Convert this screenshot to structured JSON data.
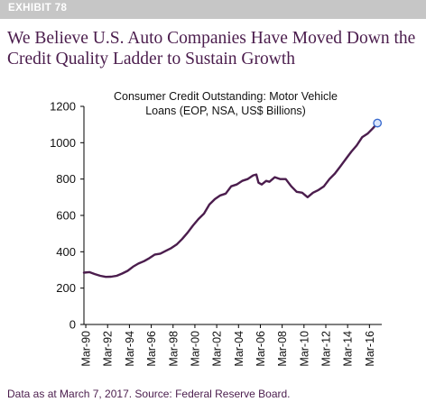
{
  "header": {
    "exhibit": "EXHIBIT 78",
    "title_line1": "We Believe U.S. Auto Companies Have Moved Down the",
    "title_line2": "Credit Quality Ladder to Sustain Growth"
  },
  "footnote": "Data as at March 7, 2017. Source: Federal Reserve Board.",
  "colors": {
    "headline": "#4b1d4d",
    "line": "#4b1d4d",
    "marker": "#3b6ccf",
    "exhibit_bar": "#c6c6c6"
  },
  "chart_data": {
    "type": "line",
    "title_line1": "Consumer Credit Outstanding: Motor Vehicle",
    "title_line2": "Loans (EOP, NSA, US$ Billions)",
    "xlabel": "",
    "ylabel": "",
    "ylim": [
      0,
      1200
    ],
    "yticks": [
      0,
      200,
      400,
      600,
      800,
      1000,
      1200
    ],
    "xticks": [
      {
        "label": "Mar-90",
        "x": 1990.17
      },
      {
        "label": "Mar-92",
        "x": 1992.17
      },
      {
        "label": "Mar-94",
        "x": 1994.17
      },
      {
        "label": "Mar-96",
        "x": 1996.17
      },
      {
        "label": "Mar-98",
        "x": 1998.17
      },
      {
        "label": "Mar-00",
        "x": 2000.17
      },
      {
        "label": "Mar-02",
        "x": 2002.17
      },
      {
        "label": "Mar-04",
        "x": 2004.17
      },
      {
        "label": "Mar-06",
        "x": 2006.17
      },
      {
        "label": "Mar-08",
        "x": 2008.17
      },
      {
        "label": "Mar-10",
        "x": 2010.17
      },
      {
        "label": "Mar-12",
        "x": 2012.17
      },
      {
        "label": "Mar-14",
        "x": 2014.17
      },
      {
        "label": "Mar-16",
        "x": 2016.17
      }
    ],
    "xlim": [
      1990.0,
      2017.3
    ],
    "grid": false,
    "series": [
      {
        "name": "",
        "points": [
          [
            1990.0,
            285
          ],
          [
            1990.5,
            288
          ],
          [
            1991.0,
            277
          ],
          [
            1991.5,
            268
          ],
          [
            1992.0,
            262
          ],
          [
            1992.5,
            263
          ],
          [
            1993.0,
            268
          ],
          [
            1993.5,
            280
          ],
          [
            1994.0,
            295
          ],
          [
            1994.5,
            318
          ],
          [
            1995.0,
            335
          ],
          [
            1995.5,
            348
          ],
          [
            1996.0,
            365
          ],
          [
            1996.5,
            385
          ],
          [
            1997.0,
            390
          ],
          [
            1997.5,
            405
          ],
          [
            1998.0,
            420
          ],
          [
            1998.5,
            440
          ],
          [
            1999.0,
            470
          ],
          [
            1999.5,
            505
          ],
          [
            2000.0,
            545
          ],
          [
            2000.5,
            580
          ],
          [
            2001.0,
            610
          ],
          [
            2001.5,
            660
          ],
          [
            2002.0,
            690
          ],
          [
            2002.5,
            710
          ],
          [
            2003.0,
            720
          ],
          [
            2003.5,
            760
          ],
          [
            2004.0,
            770
          ],
          [
            2004.5,
            790
          ],
          [
            2005.0,
            800
          ],
          [
            2005.5,
            820
          ],
          [
            2005.8,
            825
          ],
          [
            2006.0,
            780
          ],
          [
            2006.3,
            770
          ],
          [
            2006.7,
            790
          ],
          [
            2007.0,
            785
          ],
          [
            2007.5,
            810
          ],
          [
            2008.0,
            800
          ],
          [
            2008.5,
            800
          ],
          [
            2009.0,
            760
          ],
          [
            2009.5,
            730
          ],
          [
            2010.0,
            725
          ],
          [
            2010.5,
            700
          ],
          [
            2011.0,
            725
          ],
          [
            2011.5,
            740
          ],
          [
            2012.0,
            760
          ],
          [
            2012.5,
            800
          ],
          [
            2013.0,
            830
          ],
          [
            2013.5,
            870
          ],
          [
            2014.0,
            910
          ],
          [
            2014.5,
            950
          ],
          [
            2015.0,
            985
          ],
          [
            2015.5,
            1030
          ],
          [
            2016.0,
            1050
          ],
          [
            2016.5,
            1080
          ],
          [
            2016.9,
            1108
          ]
        ],
        "end_marker": [
          2016.9,
          1108
        ]
      }
    ]
  }
}
